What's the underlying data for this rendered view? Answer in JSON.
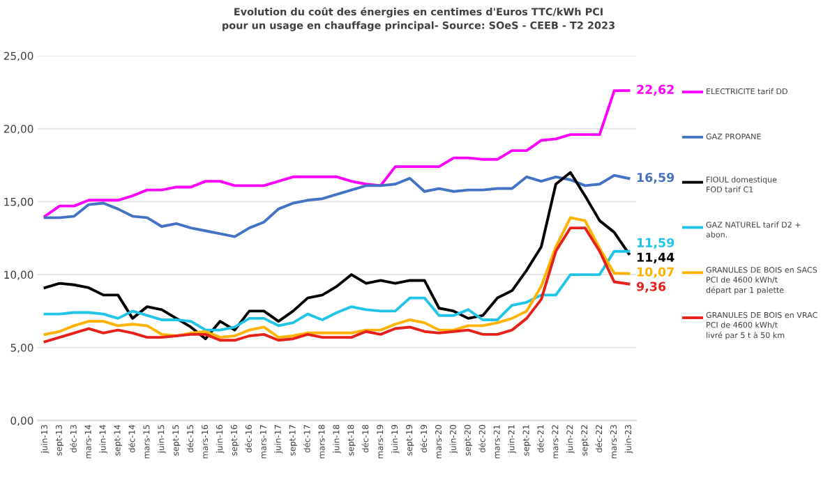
{
  "chart_data": {
    "type": "line",
    "title": "Evolution du coût des énergies en centimes d'Euros TTC/kWh PCI\npour un usage en chauffage principal- Source: SOeS - CEEB - T2 2023",
    "categories": [
      "juin-13",
      "sept-13",
      "déc-13",
      "mars-14",
      "juin-14",
      "sept-14",
      "déc-14",
      "mars-15",
      "juin-15",
      "sept-15",
      "déc-15",
      "mars-16",
      "juin-16",
      "sept-16",
      "déc-16",
      "mars-17",
      "juin-17",
      "sept-17",
      "déc-17",
      "mars-18",
      "juin-18",
      "sept-18",
      "déc-18",
      "mars-19",
      "juin-19",
      "sept-19",
      "déc-19",
      "mars-20",
      "juin-20",
      "sept-20",
      "déc-20",
      "mars-21",
      "juin-21",
      "sept-21",
      "déc-21",
      "mars-22",
      "juin-22",
      "sept-22",
      "déc-22",
      "mars-23",
      "juin-23"
    ],
    "series": [
      {
        "name": "ELECTRICITE tarif DD",
        "color": "#ff00ff",
        "values": [
          14.0,
          14.7,
          14.7,
          15.1,
          15.1,
          15.1,
          15.4,
          15.8,
          15.8,
          16.0,
          16.0,
          16.4,
          16.4,
          16.1,
          16.1,
          16.1,
          16.4,
          16.7,
          16.7,
          16.7,
          16.7,
          16.4,
          16.2,
          16.1,
          17.4,
          17.4,
          17.4,
          17.4,
          18.0,
          18.0,
          17.9,
          17.9,
          18.5,
          18.5,
          19.2,
          19.3,
          19.6,
          19.6,
          19.6,
          22.6,
          22.62
        ],
        "value_labels": [
          null,
          null,
          null,
          null,
          null,
          null,
          null,
          null,
          null,
          null,
          null,
          null,
          null,
          null,
          null,
          null,
          null,
          null,
          null,
          null,
          null,
          null,
          null,
          null,
          null,
          null,
          null,
          null,
          null,
          null,
          null,
          null,
          null,
          null,
          null,
          null,
          null,
          null,
          null,
          null,
          "22,62"
        ]
      },
      {
        "name": "GAZ PROPANE",
        "color": "#4472c4",
        "values": [
          13.9,
          13.9,
          14.0,
          14.8,
          14.9,
          14.5,
          14.0,
          13.9,
          13.3,
          13.5,
          13.2,
          13.0,
          12.8,
          12.6,
          13.2,
          13.6,
          14.5,
          14.9,
          15.1,
          15.2,
          15.5,
          15.8,
          16.1,
          16.1,
          16.2,
          16.6,
          15.7,
          15.9,
          15.7,
          15.8,
          15.8,
          15.9,
          15.9,
          16.7,
          16.4,
          16.7,
          16.5,
          16.1,
          16.2,
          16.8,
          16.59
        ],
        "value_labels": [
          null,
          null,
          null,
          null,
          null,
          null,
          null,
          null,
          null,
          null,
          null,
          null,
          null,
          null,
          null,
          null,
          null,
          null,
          null,
          null,
          null,
          null,
          null,
          null,
          null,
          null,
          null,
          null,
          null,
          null,
          null,
          null,
          null,
          null,
          null,
          null,
          null,
          null,
          null,
          null,
          "16,59"
        ]
      },
      {
        "name": "FIOUL domestique\nFOD tarif C1",
        "color": "#000000",
        "values": [
          9.1,
          9.4,
          9.3,
          9.1,
          8.6,
          8.6,
          7.0,
          7.8,
          7.6,
          7.0,
          6.4,
          5.6,
          6.8,
          6.2,
          7.5,
          7.5,
          6.8,
          7.5,
          8.4,
          8.6,
          9.2,
          10.0,
          9.4,
          9.6,
          9.4,
          9.6,
          9.6,
          7.7,
          7.5,
          7.0,
          7.2,
          8.4,
          8.9,
          10.3,
          11.9,
          16.2,
          17.0,
          15.4,
          13.7,
          12.9,
          11.44
        ],
        "value_labels": [
          null,
          null,
          null,
          null,
          null,
          null,
          null,
          null,
          null,
          null,
          null,
          null,
          null,
          null,
          null,
          null,
          null,
          null,
          null,
          null,
          null,
          null,
          null,
          null,
          null,
          null,
          null,
          null,
          null,
          null,
          null,
          null,
          null,
          null,
          null,
          null,
          null,
          null,
          null,
          null,
          "11,44"
        ]
      },
      {
        "name": "GAZ NATUREL tarif D2 +\nabon.",
        "color": "#1fc4e6",
        "values": [
          7.3,
          7.3,
          7.4,
          7.4,
          7.3,
          7.0,
          7.5,
          7.2,
          6.9,
          6.9,
          6.8,
          6.2,
          6.2,
          6.4,
          7.0,
          7.0,
          6.5,
          6.7,
          7.3,
          6.9,
          7.4,
          7.8,
          7.6,
          7.5,
          7.5,
          8.4,
          8.4,
          7.2,
          7.2,
          7.6,
          6.9,
          6.9,
          7.9,
          8.1,
          8.6,
          8.6,
          10.0,
          10.0,
          10.0,
          11.6,
          11.59
        ],
        "value_labels": [
          null,
          null,
          null,
          null,
          null,
          null,
          null,
          null,
          null,
          null,
          null,
          null,
          null,
          null,
          null,
          null,
          null,
          null,
          null,
          null,
          null,
          null,
          null,
          null,
          null,
          null,
          null,
          null,
          null,
          null,
          null,
          null,
          null,
          null,
          null,
          null,
          null,
          null,
          null,
          null,
          "11,59"
        ]
      },
      {
        "name": "GRANULES DE BOIS en SACS\nPCI de 4600 kWh/t\ndépart par 1 palette",
        "color": "#ffb300",
        "values": [
          5.9,
          6.1,
          6.5,
          6.8,
          6.8,
          6.5,
          6.6,
          6.5,
          5.9,
          5.8,
          6.0,
          6.1,
          5.7,
          5.8,
          6.2,
          6.4,
          5.7,
          5.8,
          6.0,
          6.0,
          6.0,
          6.0,
          6.2,
          6.2,
          6.6,
          6.9,
          6.7,
          6.2,
          6.2,
          6.5,
          6.5,
          6.7,
          7.0,
          7.5,
          9.2,
          11.9,
          13.9,
          13.7,
          11.8,
          10.1,
          10.07
        ],
        "value_labels": [
          null,
          null,
          null,
          null,
          null,
          null,
          null,
          null,
          null,
          null,
          null,
          null,
          null,
          null,
          null,
          null,
          null,
          null,
          null,
          null,
          null,
          null,
          null,
          null,
          null,
          null,
          null,
          null,
          null,
          null,
          null,
          null,
          null,
          null,
          null,
          null,
          null,
          null,
          null,
          null,
          "10,07"
        ]
      },
      {
        "name": "GRANULES DE BOIS en VRAC\nPCI de 4600 kWh/t\nlivré par 5 t à 50 km",
        "color": "#e8201a",
        "values": [
          5.4,
          5.7,
          6.0,
          6.3,
          6.0,
          6.2,
          6.0,
          5.7,
          5.7,
          5.8,
          5.9,
          5.9,
          5.5,
          5.5,
          5.8,
          5.9,
          5.5,
          5.6,
          5.9,
          5.7,
          5.7,
          5.7,
          6.1,
          5.9,
          6.3,
          6.4,
          6.1,
          6.0,
          6.1,
          6.2,
          5.9,
          5.9,
          6.2,
          7.0,
          8.3,
          11.6,
          13.2,
          13.2,
          11.6,
          9.5,
          9.36
        ],
        "value_labels": [
          null,
          null,
          null,
          null,
          null,
          null,
          null,
          null,
          null,
          null,
          null,
          null,
          null,
          null,
          null,
          null,
          null,
          null,
          null,
          null,
          null,
          null,
          null,
          null,
          null,
          null,
          null,
          null,
          null,
          null,
          null,
          null,
          null,
          null,
          null,
          null,
          null,
          null,
          null,
          null,
          "9,36"
        ]
      }
    ],
    "ylim": [
      0,
      25
    ],
    "yticks": [
      {
        "value": 0,
        "label": "0,00"
      },
      {
        "value": 5,
        "label": "5,00"
      },
      {
        "value": 10,
        "label": "10,00"
      },
      {
        "value": 15,
        "label": "15,00"
      },
      {
        "value": 20,
        "label": "20,00"
      },
      {
        "value": 25,
        "label": "25,00"
      }
    ],
    "grid": "y",
    "legend": "right"
  }
}
